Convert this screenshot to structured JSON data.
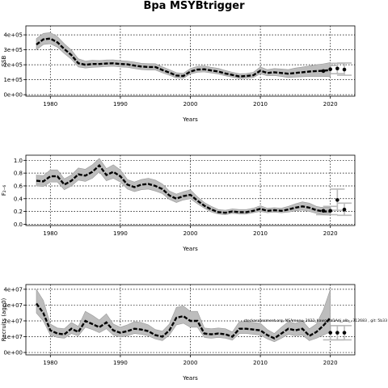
{
  "figure": {
    "title": "Bpa MSYBtrigger"
  },
  "chart_data": [
    {
      "type": "line",
      "ylabel": "SSB",
      "xlabel": "Years",
      "xlim": [
        1976.5,
        2023.5
      ],
      "ylim": [
        -10000,
        460000
      ],
      "xticks": [
        1980,
        1990,
        2000,
        2010,
        2020
      ],
      "yticks": [
        0,
        100000,
        200000,
        300000,
        400000
      ],
      "ytick_labels": [
        "0e+00",
        "1e+05",
        "2e+05",
        "3e+05",
        "4e+05"
      ],
      "grid": "dotted",
      "series": [
        {
          "x": [
            1978,
            1979,
            1980,
            1981,
            1982,
            1983,
            1984,
            1985,
            1986,
            1987,
            1988,
            1989,
            1990,
            1991,
            1992,
            1993,
            1994,
            1995,
            1996,
            1997,
            1998,
            1999,
            2000,
            2001,
            2002,
            2003,
            2004,
            2005,
            2006,
            2007,
            2008,
            2009,
            2010,
            2011,
            2012,
            2013,
            2014,
            2015,
            2016,
            2017,
            2018,
            2019,
            2020
          ],
          "y": [
            335000,
            370000,
            375000,
            350000,
            305000,
            265000,
            210000,
            200000,
            205000,
            205000,
            208000,
            210000,
            205000,
            203000,
            195000,
            188000,
            185000,
            185000,
            165000,
            148000,
            128000,
            125000,
            155000,
            168000,
            170000,
            162000,
            155000,
            142000,
            132000,
            122000,
            125000,
            130000,
            160000,
            145000,
            150000,
            145000,
            140000,
            145000,
            150000,
            155000,
            158000,
            160000,
            165000
          ],
          "lower": [
            300000,
            335000,
            340000,
            318000,
            275000,
            237000,
            185000,
            178000,
            183000,
            185000,
            188000,
            190000,
            185000,
            183000,
            175000,
            168000,
            165000,
            165000,
            146000,
            130000,
            112000,
            110000,
            138000,
            150000,
            152000,
            145000,
            138000,
            126000,
            117000,
            108000,
            110000,
            114000,
            140000,
            126000,
            128000,
            122000,
            115000,
            118000,
            120000,
            122000,
            122000,
            122000,
            120000
          ],
          "upper": [
            375000,
            410000,
            415000,
            388000,
            340000,
            298000,
            240000,
            225000,
            230000,
            228000,
            232000,
            233000,
            228000,
            225000,
            218000,
            210000,
            207000,
            207000,
            186000,
            168000,
            147000,
            143000,
            175000,
            190000,
            192000,
            183000,
            176000,
            162000,
            150000,
            140000,
            142000,
            150000,
            185000,
            168000,
            175000,
            172000,
            168000,
            178000,
            185000,
            192000,
            200000,
            206000,
            215000
          ]
        }
      ],
      "points": [
        {
          "x": 2019,
          "y": 158000
        },
        {
          "x": 2020,
          "y": 170000
        },
        {
          "x": 2021,
          "y": 175000
        },
        {
          "x": 2022,
          "y": 168000
        }
      ],
      "ghost_points": [
        {
          "x": 2019,
          "y": 155000,
          "lo": 135000,
          "hi": 178000
        },
        {
          "x": 2020,
          "y": 167000,
          "lo": 140000,
          "hi": 195000
        },
        {
          "x": 2021,
          "y": 175000,
          "lo": 140000,
          "hi": 210000
        },
        {
          "x": 2022,
          "y": 168000,
          "lo": 130000,
          "hi": 212000
        }
      ]
    },
    {
      "type": "line",
      "ylabel": "F₂₋₆",
      "xlabel": "Years",
      "xlim": [
        1976.5,
        2023.5
      ],
      "ylim": [
        -0.02,
        1.08
      ],
      "xticks": [
        1980,
        1990,
        2000,
        2010,
        2020
      ],
      "yticks": [
        0.0,
        0.2,
        0.4,
        0.6,
        0.8,
        1.0
      ],
      "ytick_labels": [
        "0.0",
        "0.2",
        "0.4",
        "0.6",
        "0.8",
        "1.0"
      ],
      "grid": "dotted",
      "series": [
        {
          "x": [
            1978,
            1979,
            1980,
            1981,
            1982,
            1983,
            1984,
            1985,
            1986,
            1987,
            1988,
            1989,
            1990,
            1991,
            1992,
            1993,
            1994,
            1995,
            1996,
            1997,
            1998,
            1999,
            2000,
            2001,
            2002,
            2003,
            2004,
            2005,
            2006,
            2007,
            2008,
            2009,
            2010,
            2011,
            2012,
            2013,
            2014,
            2015,
            2016,
            2017,
            2018,
            2019,
            2020
          ],
          "y": [
            0.68,
            0.67,
            0.75,
            0.75,
            0.62,
            0.68,
            0.78,
            0.76,
            0.82,
            0.92,
            0.77,
            0.82,
            0.75,
            0.62,
            0.58,
            0.62,
            0.63,
            0.6,
            0.55,
            0.45,
            0.4,
            0.44,
            0.46,
            0.37,
            0.29,
            0.23,
            0.19,
            0.18,
            0.2,
            0.19,
            0.19,
            0.21,
            0.24,
            0.21,
            0.22,
            0.21,
            0.23,
            0.26,
            0.28,
            0.26,
            0.22,
            0.2,
            0.2
          ],
          "lower": [
            0.6,
            0.59,
            0.66,
            0.66,
            0.54,
            0.6,
            0.69,
            0.67,
            0.72,
            0.82,
            0.68,
            0.72,
            0.66,
            0.55,
            0.51,
            0.54,
            0.55,
            0.52,
            0.48,
            0.39,
            0.34,
            0.38,
            0.4,
            0.32,
            0.25,
            0.19,
            0.16,
            0.15,
            0.17,
            0.16,
            0.16,
            0.18,
            0.2,
            0.18,
            0.19,
            0.18,
            0.19,
            0.21,
            0.22,
            0.2,
            0.17,
            0.15,
            0.14
          ],
          "upper": [
            0.77,
            0.76,
            0.85,
            0.85,
            0.71,
            0.77,
            0.88,
            0.86,
            0.93,
            1.03,
            0.87,
            0.93,
            0.85,
            0.7,
            0.66,
            0.7,
            0.72,
            0.69,
            0.63,
            0.52,
            0.47,
            0.51,
            0.54,
            0.43,
            0.34,
            0.28,
            0.23,
            0.22,
            0.24,
            0.23,
            0.23,
            0.25,
            0.29,
            0.25,
            0.26,
            0.25,
            0.28,
            0.32,
            0.35,
            0.33,
            0.28,
            0.26,
            0.27
          ]
        }
      ],
      "points": [
        {
          "x": 2019,
          "y": 0.21
        },
        {
          "x": 2020,
          "y": 0.21
        },
        {
          "x": 2021,
          "y": 0.38
        },
        {
          "x": 2022,
          "y": 0.23
        }
      ],
      "ghost_points": [
        {
          "x": 2019,
          "y": 0.2,
          "lo": 0.15,
          "hi": 0.26
        },
        {
          "x": 2020,
          "y": 0.21,
          "lo": 0.15,
          "hi": 0.28
        },
        {
          "x": 2021,
          "y": 0.38,
          "lo": 0.22,
          "hi": 0.55
        },
        {
          "x": 2022,
          "y": 0.23,
          "lo": 0.14,
          "hi": 0.33
        }
      ]
    },
    {
      "type": "line",
      "ylabel": "Recruits (age0)",
      "xlabel": "Years",
      "xlim": [
        1976.5,
        2023.5
      ],
      "ylim": [
        -1500000,
        43000000
      ],
      "xticks": [
        1980,
        1990,
        2000,
        2010,
        2020
      ],
      "yticks": [
        0,
        10000000,
        20000000,
        30000000,
        40000000
      ],
      "ytick_labels": [
        "0e+00",
        "1e+07",
        "2e+07",
        "3e+07",
        "4e+07"
      ],
      "grid": "dotted",
      "annotation": "stockassessment.org, NSAmenu_2022_hawg_sd1Adj_alb_, 712683 , git: 5b33",
      "series": [
        {
          "x": [
            1978,
            1979,
            1980,
            1981,
            1982,
            1983,
            1984,
            1985,
            1986,
            1987,
            1988,
            1989,
            1990,
            1991,
            1992,
            1993,
            1994,
            1995,
            1996,
            1997,
            1998,
            1999,
            2000,
            2001,
            2002,
            2003,
            2004,
            2005,
            2006,
            2007,
            2008,
            2009,
            2010,
            2011,
            2012,
            2013,
            2014,
            2015,
            2016,
            2017,
            2018,
            2019,
            2020
          ],
          "y": [
            31000000,
            25000000,
            14000000,
            12000000,
            11500000,
            15000000,
            13000000,
            20000000,
            18000000,
            16000000,
            19000000,
            14000000,
            12500000,
            13500000,
            15000000,
            14500000,
            13500000,
            11000000,
            10000000,
            14000000,
            22000000,
            23000000,
            20000000,
            20000000,
            12000000,
            11500000,
            12000000,
            11500000,
            10000000,
            15000000,
            15000000,
            14500000,
            14000000,
            11000000,
            9000000,
            12000000,
            15000000,
            14000000,
            15000000,
            10500000,
            13000000,
            17000000,
            22000000
          ],
          "lower": [
            25000000,
            20000000,
            11000000,
            9500000,
            9000000,
            12000000,
            10500000,
            16000000,
            14500000,
            12500000,
            15000000,
            11000000,
            9800000,
            10500000,
            12000000,
            11500000,
            10500000,
            8500000,
            7500000,
            11000000,
            17500000,
            18500000,
            16000000,
            16000000,
            9500000,
            9000000,
            9500000,
            9000000,
            7800000,
            12000000,
            12000000,
            11500000,
            11000000,
            8500000,
            6800000,
            9000000,
            11500000,
            10500000,
            11000000,
            7500000,
            9000000,
            11000000,
            13000000
          ],
          "upper": [
            40000000,
            33000000,
            18000000,
            15500000,
            15000000,
            19000000,
            16500000,
            26000000,
            23500000,
            20500000,
            24500000,
            18000000,
            16000000,
            17500000,
            19500000,
            19000000,
            17500000,
            14500000,
            13500000,
            18000000,
            28500000,
            29500000,
            26000000,
            26000000,
            15500000,
            15000000,
            15500000,
            15000000,
            13000000,
            19500000,
            19500000,
            19000000,
            18500000,
            14500000,
            12000000,
            16000000,
            19500000,
            18500000,
            20000000,
            15000000,
            18000000,
            27000000,
            40000000
          ]
        }
      ],
      "points": [
        {
          "x": 2020,
          "y": 12500000
        },
        {
          "x": 2021,
          "y": 12500000
        },
        {
          "x": 2022,
          "y": 12500000
        }
      ],
      "ghost_points": [
        {
          "x": 2020,
          "y": 12500000,
          "lo": 8000000,
          "hi": 17000000
        },
        {
          "x": 2021,
          "y": 12500000,
          "lo": 8000000,
          "hi": 17000000
        },
        {
          "x": 2022,
          "y": 12500000,
          "lo": 8000000,
          "hi": 17000000
        }
      ]
    }
  ]
}
